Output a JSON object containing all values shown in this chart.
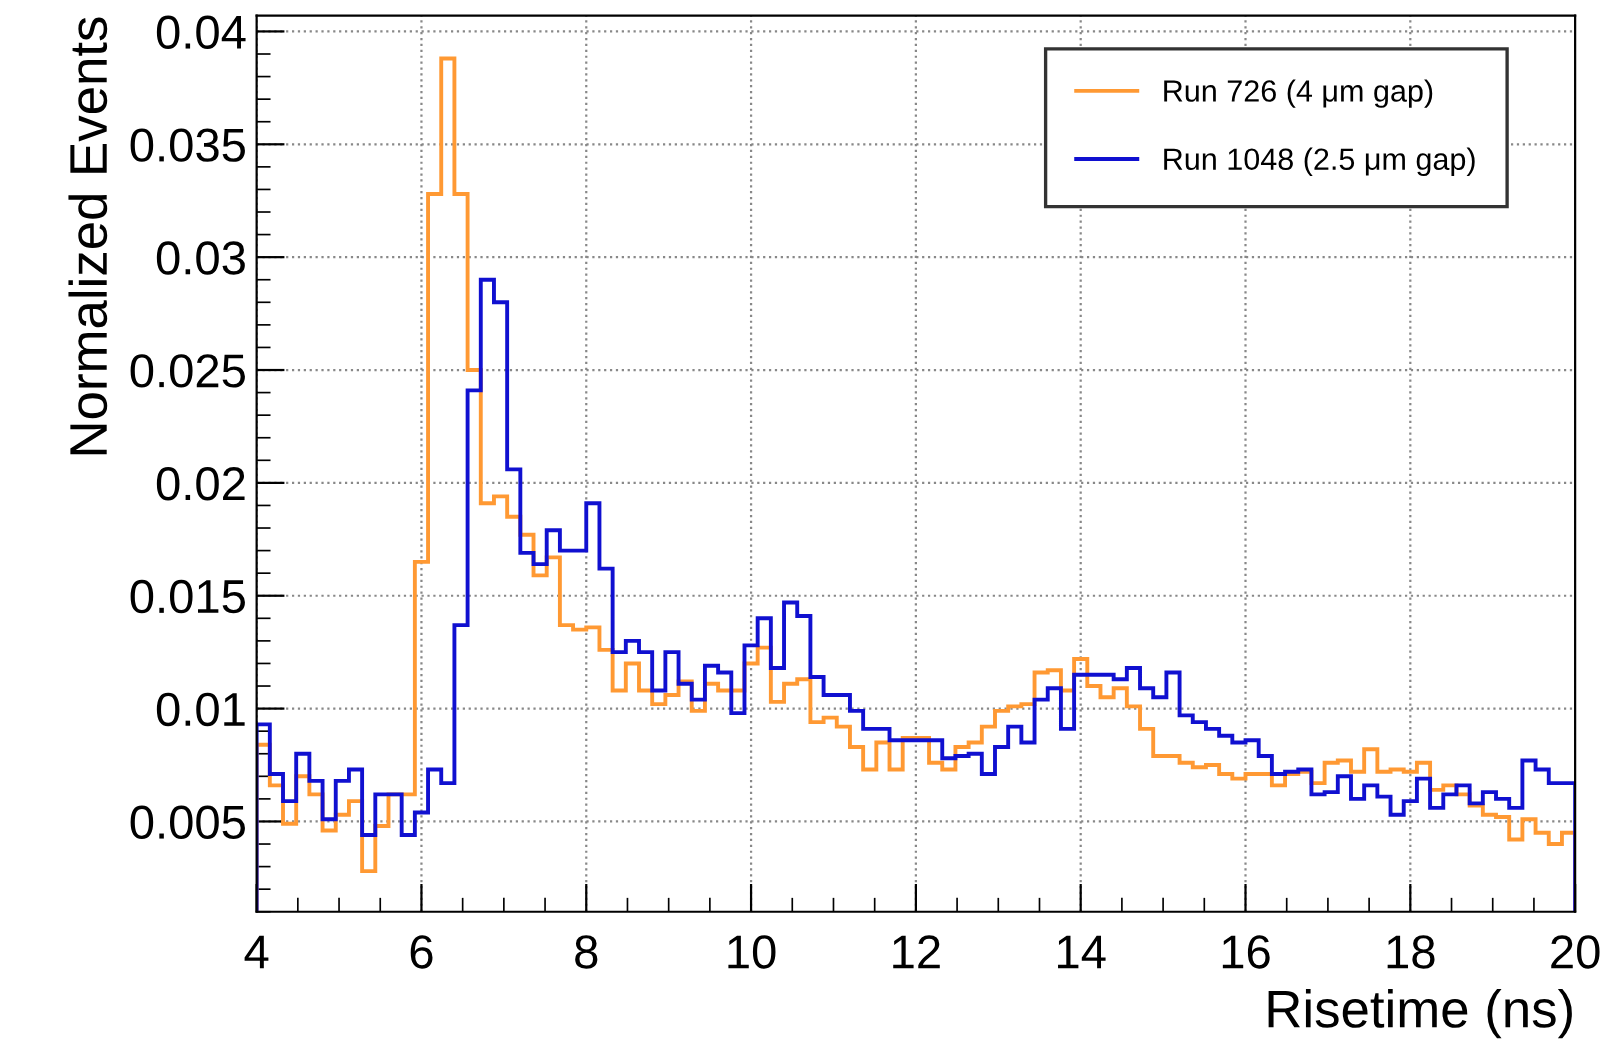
{
  "chart_data": {
    "type": "histogram",
    "xlabel": "Risetime (ns)",
    "ylabel": "Normalized Events",
    "bins": [
      4.0,
      4.16,
      4.32,
      4.48,
      4.64,
      4.8,
      4.96,
      5.12,
      5.28,
      5.44,
      5.6,
      5.76,
      5.92,
      6.08,
      6.24,
      6.4,
      6.56,
      6.72,
      6.88,
      7.04,
      7.2,
      7.36,
      7.52,
      7.68,
      7.84,
      8.0,
      8.16,
      8.32,
      8.48,
      8.64,
      8.8,
      8.96,
      9.12,
      9.28,
      9.44,
      9.6,
      9.76,
      9.92,
      10.08,
      10.24,
      10.4,
      10.56,
      10.72,
      10.88,
      11.04,
      11.2,
      11.36,
      11.52,
      11.68,
      11.84,
      12.0,
      12.16,
      12.32,
      12.48,
      12.64,
      12.8,
      12.96,
      13.12,
      13.28,
      13.44,
      13.6,
      13.76,
      13.92,
      14.08,
      14.24,
      14.4,
      14.56,
      14.72,
      14.88,
      15.04,
      15.2,
      15.36,
      15.52,
      15.68,
      15.84,
      16.0,
      16.16,
      16.32,
      16.48,
      16.64,
      16.8,
      16.96,
      17.12,
      17.28,
      17.44,
      17.6,
      17.76,
      17.92,
      18.08,
      18.24,
      18.4,
      18.56,
      18.72,
      18.88,
      19.04,
      19.2,
      19.36,
      19.52,
      19.68,
      19.84,
      20.0
    ],
    "series": [
      {
        "name": "Run 726 (4 μm gap)",
        "color": "#ff9933",
        "values": [
          0.0084,
          0.0066,
          0.0049,
          0.007,
          0.0062,
          0.0046,
          0.0053,
          0.0059,
          0.0028,
          0.0048,
          0.0062,
          0.0062,
          0.0165,
          0.0328,
          0.0388,
          0.0328,
          0.025,
          0.0191,
          0.0194,
          0.0185,
          0.0177,
          0.0159,
          0.0167,
          0.0137,
          0.0135,
          0.0136,
          0.0126,
          0.0108,
          0.012,
          0.0108,
          0.0102,
          0.0106,
          0.0112,
          0.0099,
          0.0111,
          0.0108,
          0.0108,
          0.012,
          0.0127,
          0.0103,
          0.0111,
          0.0113,
          0.0094,
          0.0096,
          0.0092,
          0.0083,
          0.0073,
          0.0085,
          0.0073,
          0.0087,
          0.0087,
          0.0076,
          0.0073,
          0.0083,
          0.0085,
          0.0092,
          0.0099,
          0.0101,
          0.0102,
          0.0116,
          0.0117,
          0.0108,
          0.0122,
          0.011,
          0.0105,
          0.0109,
          0.0101,
          0.0091,
          0.0079,
          0.0079,
          0.0076,
          0.0074,
          0.0075,
          0.0071,
          0.0069,
          0.0071,
          0.0071,
          0.0066,
          0.0071,
          0.0072,
          0.0067,
          0.0076,
          0.0077,
          0.0072,
          0.0082,
          0.0072,
          0.0073,
          0.0072,
          0.0076,
          0.0064,
          0.0066,
          0.0062,
          0.0057,
          0.0053,
          0.0052,
          0.0042,
          0.0051,
          0.0045,
          0.004,
          0.0045
        ]
      },
      {
        "name": "Run 1048 (2.5 μm gap)",
        "color": "#1010d0",
        "values": [
          0.0093,
          0.0071,
          0.0059,
          0.008,
          0.0068,
          0.0051,
          0.0068,
          0.0073,
          0.0044,
          0.0062,
          0.0062,
          0.0044,
          0.0054,
          0.0073,
          0.0067,
          0.0137,
          0.0241,
          0.029,
          0.028,
          0.0206,
          0.0169,
          0.0164,
          0.0179,
          0.017,
          0.017,
          0.0191,
          0.0162,
          0.0125,
          0.013,
          0.0125,
          0.0108,
          0.0125,
          0.0111,
          0.0104,
          0.0119,
          0.0116,
          0.0098,
          0.0128,
          0.014,
          0.0118,
          0.0147,
          0.0141,
          0.0114,
          0.0106,
          0.0106,
          0.0099,
          0.0091,
          0.0091,
          0.0086,
          0.0086,
          0.0086,
          0.0086,
          0.0078,
          0.0079,
          0.008,
          0.0071,
          0.0083,
          0.0092,
          0.0085,
          0.0104,
          0.0109,
          0.0091,
          0.0115,
          0.0115,
          0.0115,
          0.0113,
          0.0118,
          0.0109,
          0.0105,
          0.0116,
          0.0097,
          0.0094,
          0.0091,
          0.0088,
          0.0085,
          0.0086,
          0.0079,
          0.0071,
          0.0072,
          0.0073,
          0.0062,
          0.0063,
          0.007,
          0.006,
          0.0066,
          0.0061,
          0.0053,
          0.0059,
          0.0069,
          0.0056,
          0.0062,
          0.0066,
          0.0058,
          0.0063,
          0.006,
          0.0056,
          0.0077,
          0.0073,
          0.0067,
          0.0067
        ]
      }
    ],
    "xlim": [
      4,
      20
    ],
    "xticks": [
      4,
      6,
      8,
      10,
      12,
      14,
      16,
      18,
      20
    ],
    "ylim": [
      0.001,
      0.0407
    ],
    "yticks": [
      0.005,
      0.01,
      0.015,
      0.02,
      0.025,
      0.03,
      0.035,
      0.04
    ],
    "grid": true,
    "legend": "top right"
  }
}
